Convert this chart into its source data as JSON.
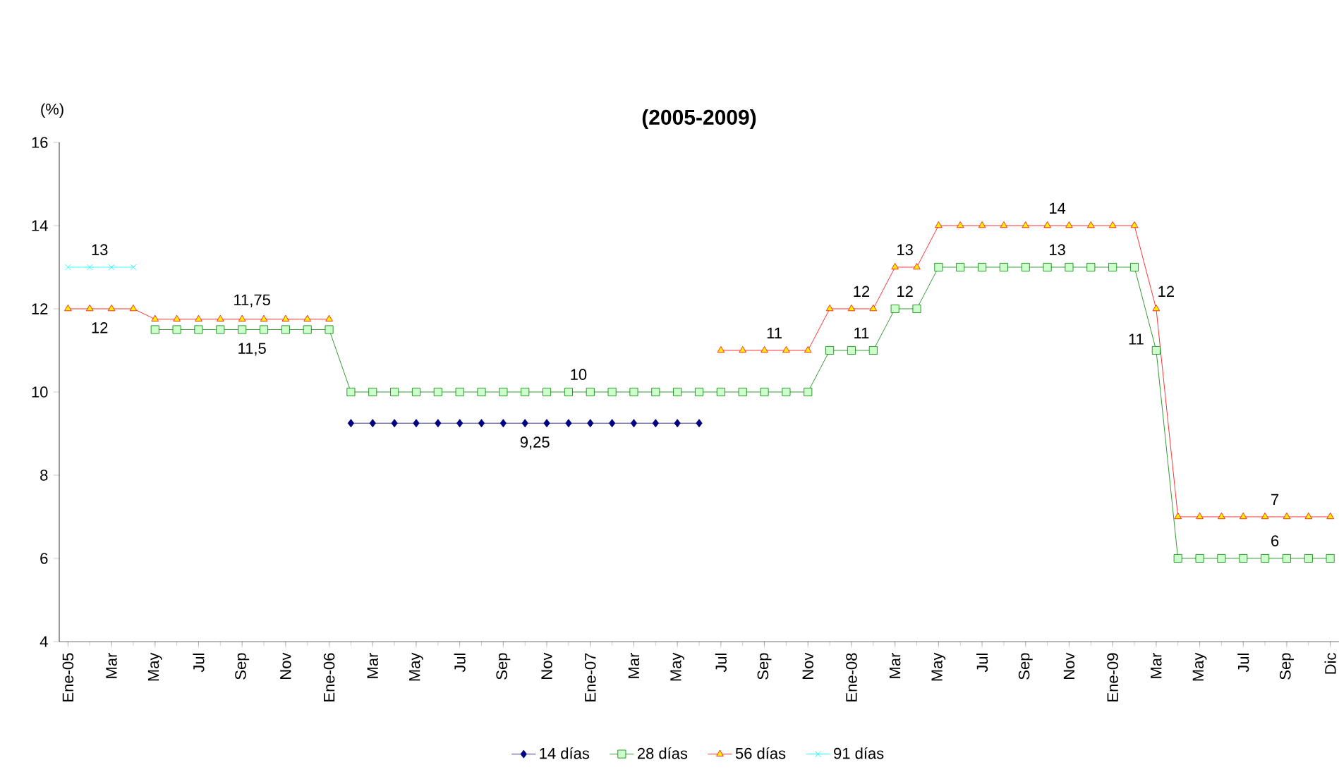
{
  "chart_data": {
    "type": "line",
    "title": "(2005-2009)",
    "ylabel": "(%)",
    "categories": [
      "Ene-05",
      null,
      "Mar",
      null,
      "May",
      null,
      "Jul",
      null,
      "Sep",
      null,
      "Nov",
      null,
      "Ene-06",
      null,
      "Mar",
      null,
      "May",
      null,
      "Jul",
      null,
      "Sep",
      null,
      "Nov",
      null,
      "Ene-07",
      null,
      "Mar",
      null,
      "May",
      null,
      "Jul",
      null,
      "Sep",
      null,
      "Nov",
      null,
      "Ene-08",
      null,
      "Mar",
      null,
      "May",
      null,
      "Jul",
      null,
      "Sep",
      null,
      "Nov",
      null,
      "Ene-09",
      null,
      "Mar",
      null,
      "May",
      null,
      "Jul",
      null,
      "Sep",
      null,
      "Dic"
    ],
    "ylim": [
      4,
      16
    ],
    "yticks": [
      4,
      6,
      8,
      10,
      12,
      14,
      16
    ],
    "legend": "bottom",
    "series": [
      {
        "name": "14 días",
        "color": "#000080",
        "marker": "diamond",
        "values": [
          null,
          null,
          null,
          null,
          null,
          null,
          null,
          null,
          null,
          null,
          null,
          null,
          null,
          9.25,
          9.25,
          9.25,
          9.25,
          9.25,
          9.25,
          9.25,
          9.25,
          9.25,
          9.25,
          9.25,
          9.25,
          9.25,
          9.25,
          9.25,
          9.25,
          9.25,
          null,
          null,
          null,
          null,
          null,
          null,
          null,
          null,
          null,
          null,
          null,
          null,
          null,
          null,
          null,
          null,
          null,
          null,
          null,
          null,
          null,
          null,
          null,
          null,
          null,
          null,
          null,
          null,
          null
        ],
        "value_labels": [
          null,
          null,
          null,
          null,
          null,
          null,
          null,
          null,
          null,
          null,
          null,
          null,
          null,
          null,
          null,
          null,
          null,
          null,
          null,
          null,
          null,
          "9,25",
          null,
          null,
          null,
          null,
          null,
          null,
          null,
          null,
          null,
          null,
          null,
          null,
          null,
          null,
          null,
          null,
          null,
          null,
          null,
          null,
          null,
          null,
          null,
          null,
          null,
          null,
          null,
          null,
          null,
          null,
          null,
          null,
          null,
          null,
          null,
          null,
          null
        ]
      },
      {
        "name": "28 días",
        "color": "#008000",
        "marker": "square",
        "values": [
          null,
          null,
          null,
          null,
          11.5,
          11.5,
          11.5,
          11.5,
          11.5,
          11.5,
          11.5,
          11.5,
          11.5,
          10,
          10,
          10,
          10,
          10,
          10,
          10,
          10,
          10,
          10,
          10,
          10,
          10,
          10,
          10,
          10,
          10,
          10,
          10,
          10,
          10,
          10,
          11,
          11,
          11,
          12,
          12,
          13,
          13,
          13,
          13,
          13,
          13,
          13,
          13,
          13,
          13,
          11,
          6,
          6,
          6,
          6,
          6,
          6,
          6,
          6
        ],
        "value_labels": [
          null,
          null,
          null,
          null,
          null,
          null,
          null,
          null,
          "11,5",
          null,
          null,
          null,
          null,
          null,
          null,
          null,
          null,
          null,
          null,
          null,
          null,
          null,
          null,
          "10",
          null,
          null,
          null,
          null,
          null,
          null,
          null,
          null,
          null,
          null,
          null,
          null,
          "11",
          null,
          "12",
          null,
          null,
          null,
          null,
          null,
          null,
          "13",
          null,
          null,
          null,
          null,
          "11",
          null,
          null,
          null,
          null,
          "6",
          null,
          null,
          null
        ]
      },
      {
        "name": "56 días",
        "color": "#ff0000",
        "marker": "triangle",
        "values": [
          12,
          12,
          12,
          12,
          11.75,
          11.75,
          11.75,
          11.75,
          11.75,
          11.75,
          11.75,
          11.75,
          11.75,
          null,
          null,
          null,
          null,
          null,
          null,
          null,
          null,
          null,
          null,
          null,
          null,
          null,
          null,
          null,
          null,
          null,
          11,
          11,
          11,
          11,
          11,
          12,
          12,
          12,
          13,
          13,
          14,
          14,
          14,
          14,
          14,
          14,
          14,
          14,
          14,
          14,
          12,
          7,
          7,
          7,
          7,
          7,
          7,
          7,
          7
        ],
        "value_labels": [
          null,
          "12",
          null,
          null,
          null,
          null,
          null,
          null,
          "11,75",
          null,
          null,
          null,
          null,
          null,
          null,
          null,
          null,
          null,
          null,
          null,
          null,
          null,
          null,
          null,
          null,
          null,
          null,
          null,
          null,
          null,
          null,
          null,
          "11",
          null,
          null,
          null,
          "12",
          null,
          "13",
          null,
          null,
          null,
          null,
          null,
          null,
          "14",
          null,
          null,
          null,
          null,
          "12",
          null,
          null,
          null,
          null,
          "7",
          null,
          null,
          null
        ]
      },
      {
        "name": "91 días",
        "color": "#00ffff",
        "marker": "cross",
        "values": [
          13,
          13,
          13,
          13,
          null,
          null,
          null,
          null,
          null,
          null,
          null,
          null,
          null,
          null,
          null,
          null,
          null,
          null,
          null,
          null,
          null,
          null,
          null,
          null,
          null,
          null,
          null,
          null,
          null,
          null,
          null,
          null,
          null,
          null,
          null,
          null,
          null,
          null,
          null,
          null,
          null,
          null,
          null,
          null,
          null,
          null,
          null,
          null,
          null,
          null,
          null,
          null,
          null,
          null,
          null,
          null,
          null,
          null,
          null
        ],
        "value_labels": [
          null,
          "13",
          null,
          null,
          null,
          null,
          null,
          null,
          null,
          null,
          null,
          null,
          null,
          null,
          null,
          null,
          null,
          null,
          null,
          null,
          null,
          null,
          null,
          null,
          null,
          null,
          null,
          null,
          null,
          null,
          null,
          null,
          null,
          null,
          null,
          null,
          null,
          null,
          null,
          null,
          null,
          null,
          null,
          null,
          null,
          null,
          null,
          null,
          null,
          null,
          null,
          null,
          null,
          null,
          null,
          null,
          null,
          null,
          null
        ]
      }
    ]
  }
}
